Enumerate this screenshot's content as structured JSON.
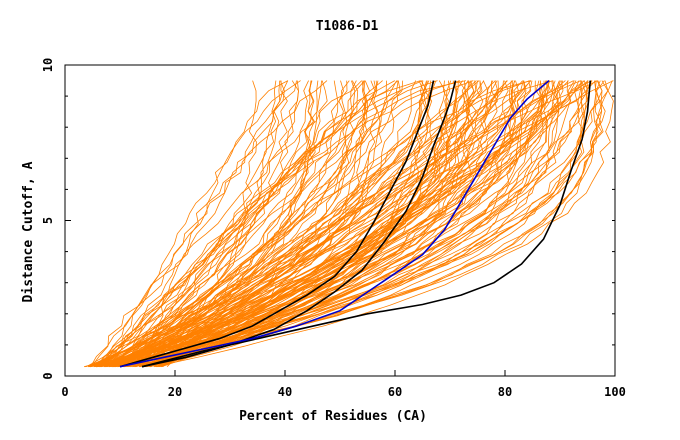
{
  "chart_data": {
    "type": "line",
    "title": "T1086-D1",
    "xlabel": "Percent of Residues (CA)",
    "ylabel": "Distance Cutoff, A",
    "xlim": [
      0,
      100
    ],
    "ylim": [
      0,
      10
    ],
    "x_ticks": [
      "0",
      "20",
      "40",
      "60",
      "80",
      "100"
    ],
    "y_ticks": [
      "0",
      "5",
      "10"
    ],
    "grid": false,
    "colors": {
      "models": "#ff8000",
      "highlight_black": "#000000",
      "highlight_blue": "#0000cc"
    },
    "highlighted_series": [
      {
        "color": "black",
        "points": [
          [
            10,
            0.3
          ],
          [
            16,
            0.6
          ],
          [
            22,
            0.9
          ],
          [
            28,
            1.2
          ],
          [
            34,
            1.6
          ],
          [
            39,
            2.1
          ],
          [
            44,
            2.6
          ],
          [
            49,
            3.2
          ],
          [
            53,
            4.0
          ],
          [
            56,
            4.9
          ],
          [
            59,
            5.9
          ],
          [
            62,
            6.9
          ],
          [
            64,
            7.8
          ],
          [
            66,
            8.7
          ],
          [
            67,
            9.5
          ]
        ]
      },
      {
        "color": "black",
        "points": [
          [
            14,
            0.3
          ],
          [
            22,
            0.6
          ],
          [
            30,
            1.0
          ],
          [
            38,
            1.5
          ],
          [
            44,
            2.1
          ],
          [
            49,
            2.7
          ],
          [
            54,
            3.4
          ],
          [
            58,
            4.3
          ],
          [
            62,
            5.3
          ],
          [
            65,
            6.4
          ],
          [
            67,
            7.4
          ],
          [
            69,
            8.3
          ],
          [
            70,
            8.8
          ],
          [
            71,
            9.5
          ]
        ]
      },
      {
        "color": "black",
        "points": [
          [
            14,
            0.3
          ],
          [
            25,
            0.8
          ],
          [
            35,
            1.2
          ],
          [
            45,
            1.6
          ],
          [
            55,
            2.0
          ],
          [
            65,
            2.3
          ],
          [
            72,
            2.6
          ],
          [
            78,
            3.0
          ],
          [
            83,
            3.6
          ],
          [
            87,
            4.4
          ],
          [
            90,
            5.5
          ],
          [
            92,
            6.6
          ],
          [
            94,
            7.6
          ],
          [
            95,
            8.5
          ],
          [
            95.5,
            9.5
          ]
        ]
      },
      {
        "color": "blue",
        "points": [
          [
            10,
            0.3
          ],
          [
            18,
            0.6
          ],
          [
            26,
            0.9
          ],
          [
            34,
            1.2
          ],
          [
            42,
            1.6
          ],
          [
            50,
            2.1
          ],
          [
            55,
            2.7
          ],
          [
            60,
            3.3
          ],
          [
            65,
            3.9
          ],
          [
            69,
            4.7
          ],
          [
            72,
            5.6
          ],
          [
            75,
            6.5
          ],
          [
            78,
            7.4
          ],
          [
            81,
            8.3
          ],
          [
            84,
            8.9
          ],
          [
            88,
            9.5
          ]
        ]
      }
    ],
    "background_series_count": 160,
    "background_series_note": "many orange model curves from x≈5–20 at y≈0.3 rising to y≈9.5, ending between x≈25 and x≈100"
  }
}
